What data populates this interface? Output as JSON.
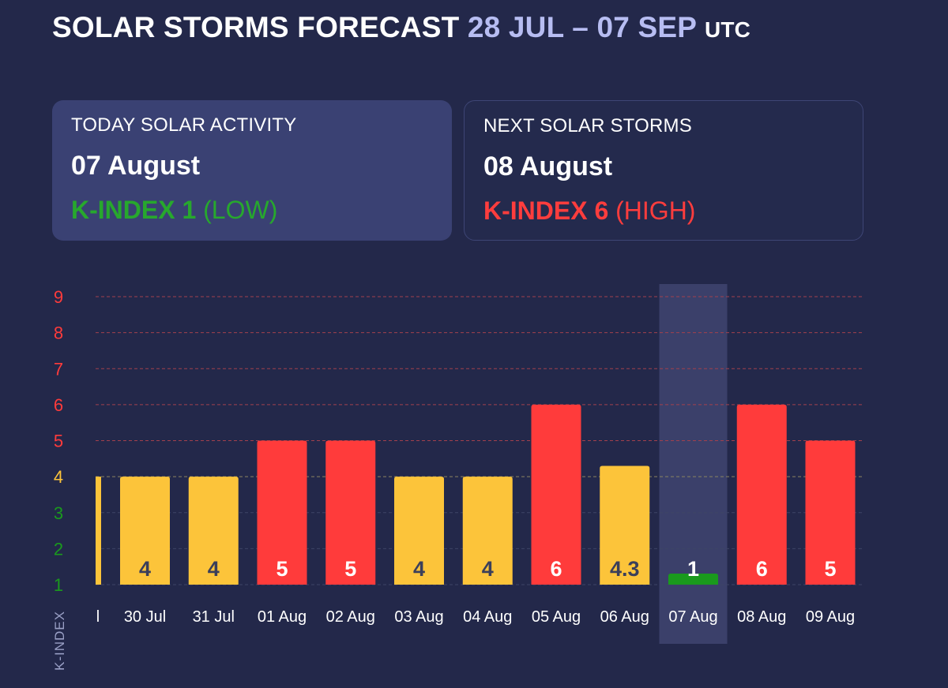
{
  "header": {
    "title": "SOLAR STORMS FORECAST",
    "range": "28 JUL – 07 SEP",
    "timezone": "UTC"
  },
  "cards": {
    "today": {
      "label": "TODAY SOLAR ACTIVITY",
      "date": "07 August",
      "index_label": "K-INDEX 1",
      "level": "(LOW)"
    },
    "next": {
      "label": "NEXT SOLAR STORMS",
      "date": "08 August",
      "index_label": "K-INDEX 6",
      "level": "(HIGH)"
    }
  },
  "colors": {
    "background": "#23284a",
    "low": "#1a9a1d",
    "moderate": "#fcc43a",
    "high": "#ff3b3b",
    "highlight": "#3b406a"
  },
  "chart_data": {
    "type": "bar",
    "ylabel": "K-INDEX",
    "ylim": [
      1,
      9
    ],
    "yticks": [
      1,
      2,
      3,
      4,
      5,
      6,
      7,
      8,
      9
    ],
    "partial_first_category": "l",
    "categories": [
      "30 Jul",
      "31 Jul",
      "01 Aug",
      "02 Aug",
      "03 Aug",
      "04 Aug",
      "05 Aug",
      "06 Aug",
      "07 Aug",
      "08 Aug",
      "09 Aug"
    ],
    "values": [
      4,
      4,
      5,
      5,
      4,
      4,
      6,
      4.3,
      1,
      6,
      5
    ],
    "value_labels": [
      "4",
      "4",
      "5",
      "5",
      "4",
      "4",
      "6",
      "4.3",
      "1",
      "6",
      "5"
    ],
    "partial_first_value": 4,
    "highlighted": "07 Aug"
  }
}
